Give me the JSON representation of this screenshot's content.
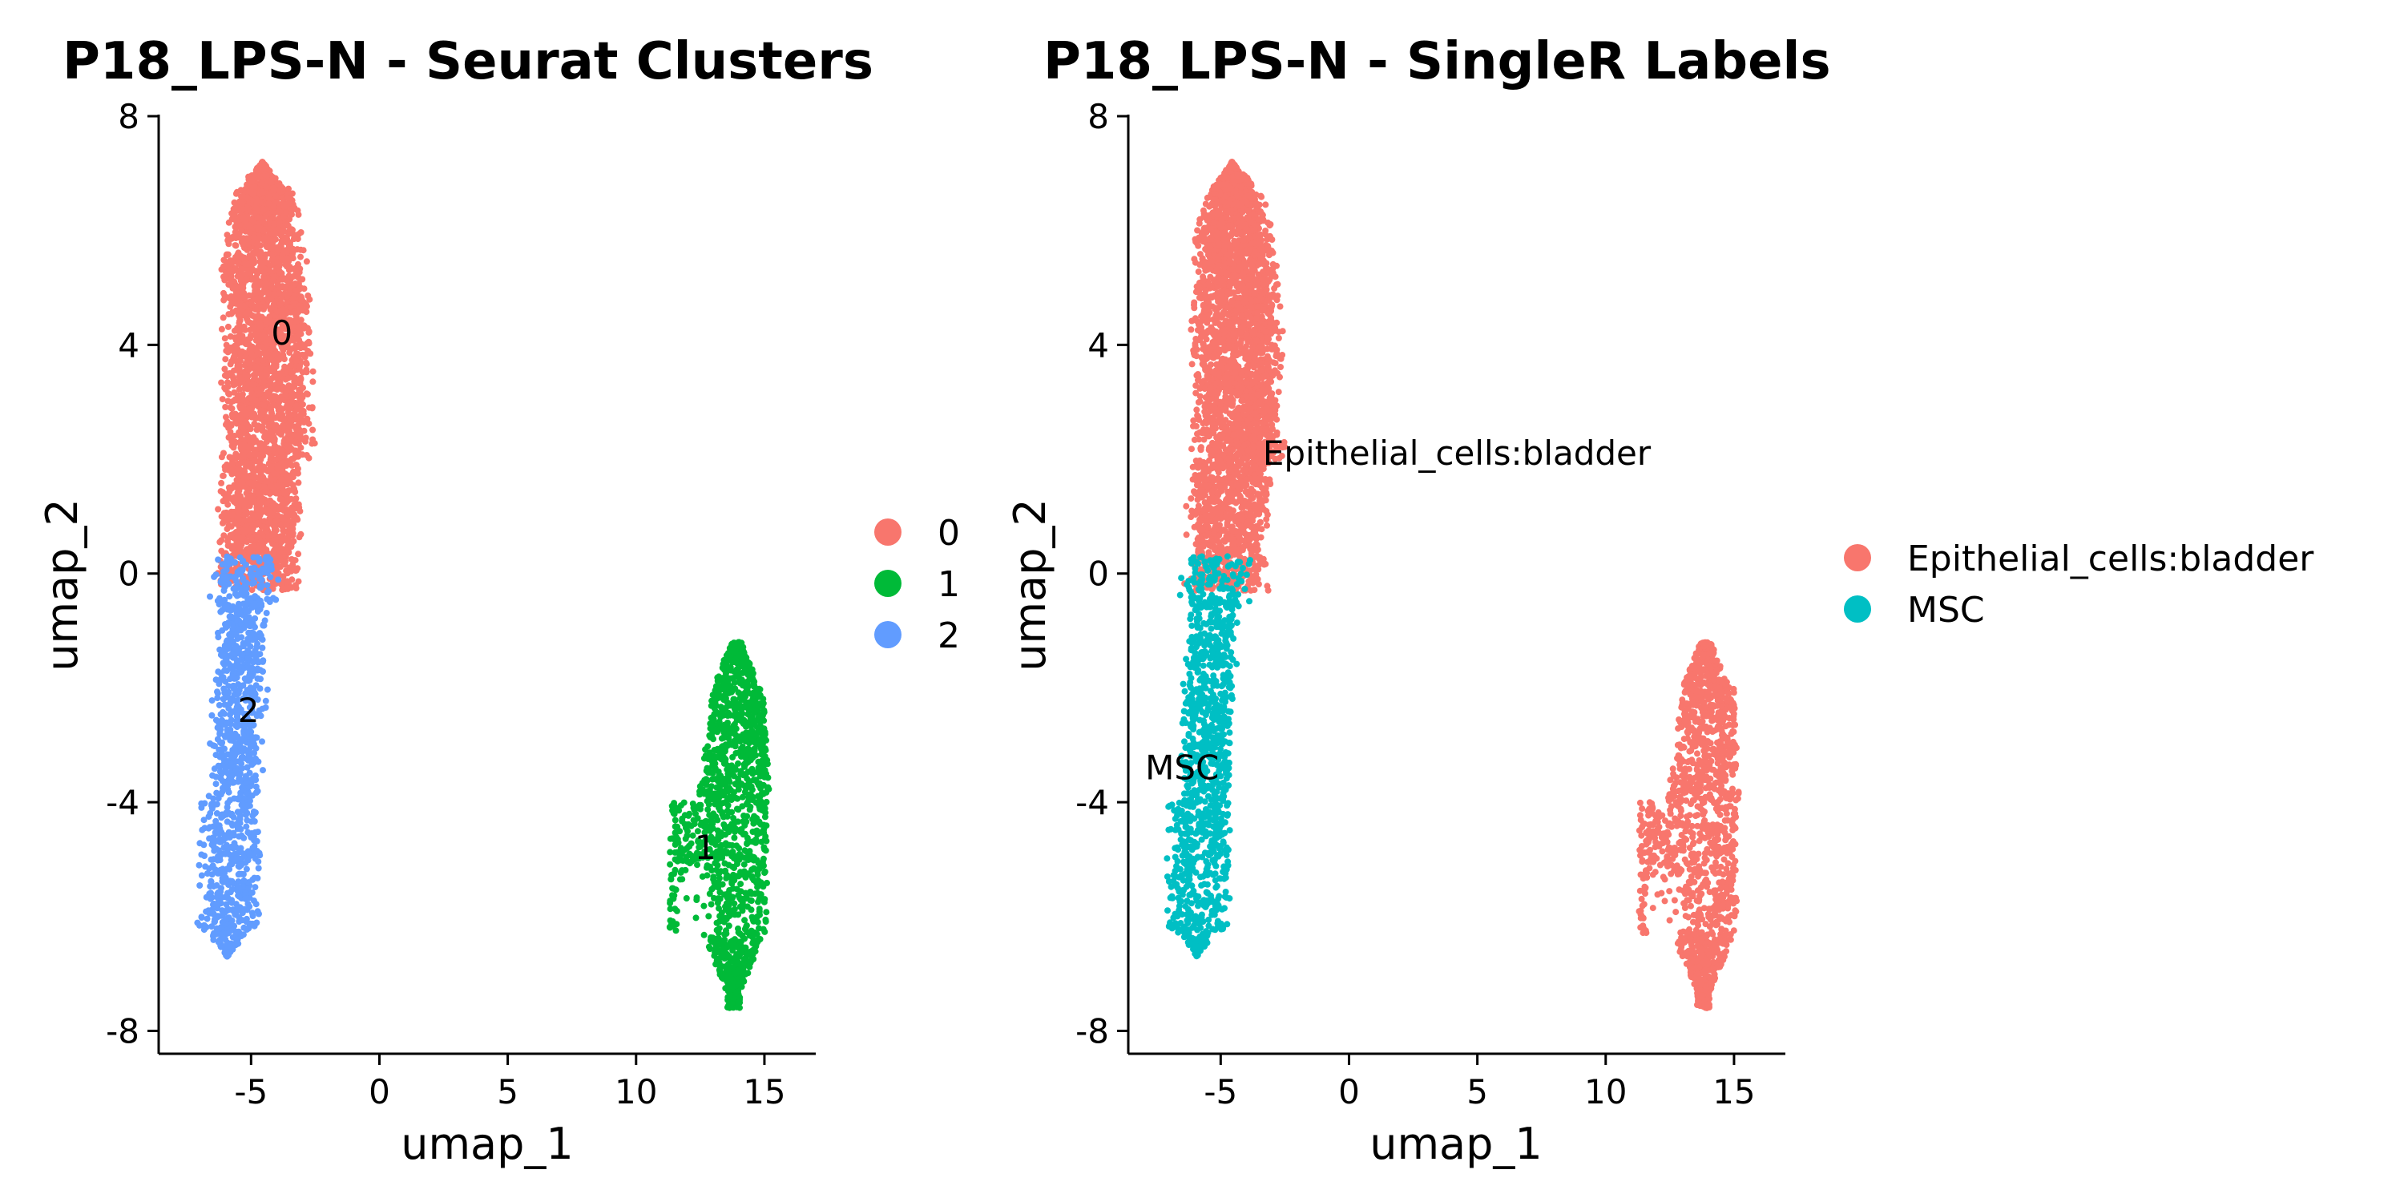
{
  "chart_data": [
    {
      "type": "scatter",
      "title": "P18_LPS-N - Seurat Clusters",
      "xlabel": "umap_1",
      "ylabel": "umap_2",
      "xlim": [
        -8.6,
        17
      ],
      "ylim": [
        -8.4,
        8.0
      ],
      "xticks": [
        -5,
        0,
        5,
        10,
        15
      ],
      "yticks": [
        -8,
        -4,
        0,
        4,
        8
      ],
      "xtick_labels": [
        "-5",
        "0",
        "5",
        "10",
        "15"
      ],
      "ytick_labels": [
        "-8",
        "-4",
        "0",
        "4",
        "8"
      ],
      "grid": false,
      "legend_position": "right",
      "legend": [
        {
          "label": "0",
          "color": "#F8766D"
        },
        {
          "label": "1",
          "color": "#00BA38"
        },
        {
          "label": "2",
          "color": "#619CFF"
        }
      ],
      "point_labels": [
        {
          "text": "0",
          "x": -3.8,
          "y": 4.2
        },
        {
          "text": "1",
          "x": 12.7,
          "y": -4.8
        },
        {
          "text": "2",
          "x": -5.1,
          "y": -2.4
        }
      ],
      "series": [
        {
          "name": "0",
          "color": "#F8766D",
          "region": "upper-arm",
          "x_range": [
            -7.1,
            -1.8
          ],
          "y_range": [
            -0.3,
            7.2
          ],
          "approx_center": [
            -4.6,
            3.5
          ]
        },
        {
          "name": "1",
          "color": "#00BA38",
          "region": "right-island",
          "x_range": [
            10.6,
            15.6
          ],
          "y_range": [
            -7.6,
            -1.2
          ],
          "approx_center": [
            13.2,
            -4.3
          ]
        },
        {
          "name": "2",
          "color": "#619CFF",
          "region": "lower-arm",
          "x_range": [
            -7.4,
            -3.3
          ],
          "y_range": [
            -6.7,
            0.3
          ],
          "approx_center": [
            -5.8,
            -3.4
          ]
        }
      ]
    },
    {
      "type": "scatter",
      "title": "P18_LPS-N - SingleR Labels",
      "xlabel": "umap_1",
      "ylabel": "umap_2",
      "xlim": [
        -8.6,
        17
      ],
      "ylim": [
        -8.4,
        8.0
      ],
      "xticks": [
        -5,
        0,
        5,
        10,
        15
      ],
      "yticks": [
        -8,
        -4,
        0,
        4,
        8
      ],
      "xtick_labels": [
        "-5",
        "0",
        "5",
        "10",
        "15"
      ],
      "ytick_labels": [
        "-8",
        "-4",
        "0",
        "4",
        "8"
      ],
      "grid": false,
      "legend_position": "right",
      "legend": [
        {
          "label": "Epithelial_cells:bladder",
          "color": "#F8766D"
        },
        {
          "label": "MSC",
          "color": "#00BFC4"
        }
      ],
      "point_labels": [
        {
          "text": "Epithelial_cells:bladder",
          "x": 4.2,
          "y": 2.1
        },
        {
          "text": "MSC",
          "x": -6.5,
          "y": -3.4
        }
      ],
      "series": [
        {
          "name": "Epithelial_cells:bladder",
          "color": "#F8766D",
          "region": "upper-arm + right-island",
          "x_range": [
            -7.1,
            15.6
          ],
          "y_range": [
            -7.6,
            7.2
          ]
        },
        {
          "name": "MSC",
          "color": "#00BFC4",
          "region": "lower-arm",
          "x_range": [
            -7.4,
            -3.3
          ],
          "y_range": [
            -6.7,
            0.3
          ]
        }
      ]
    }
  ]
}
